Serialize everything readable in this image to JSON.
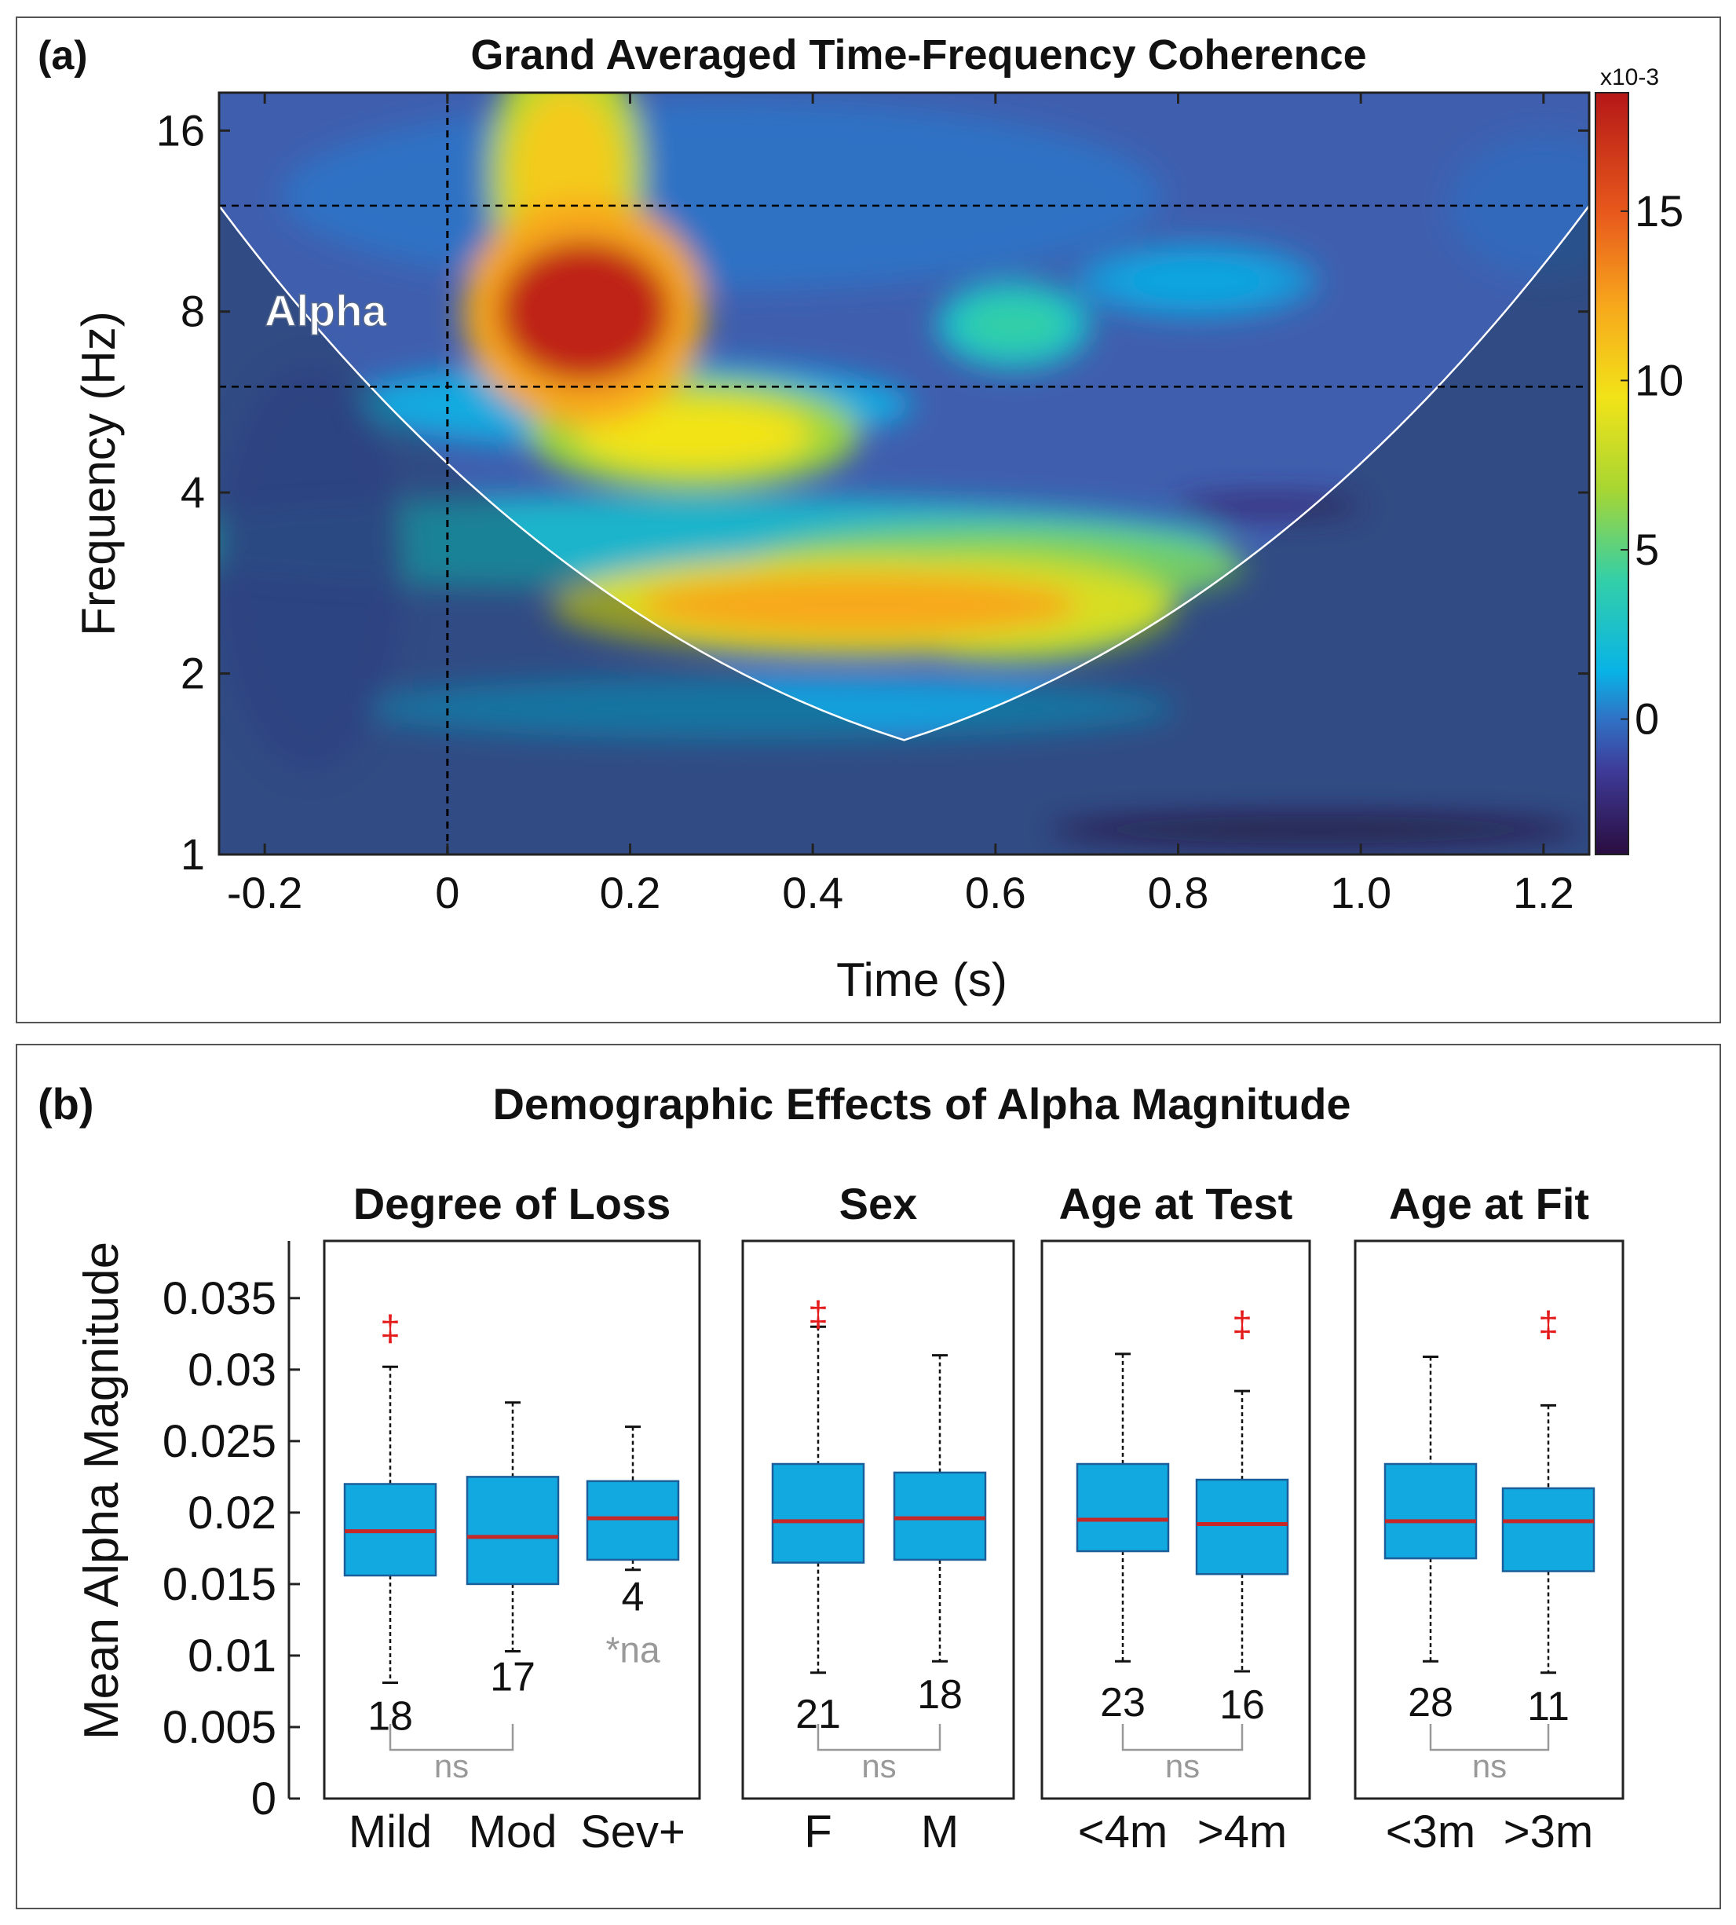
{
  "panel_a": {
    "label": "(a)",
    "title": "Grand Averaged Time-Frequency Coherence",
    "annotation": "Alpha",
    "colorbar": {
      "exponent_label": "x10-3",
      "ticks": [
        "15",
        "10",
        "5",
        "0"
      ],
      "range": [
        -4,
        18.5
      ],
      "tick_values": [
        15,
        10,
        5,
        0
      ],
      "colors": [
        "#2a0d3f",
        "#3e3b98",
        "#2f74c6",
        "#08b3e6",
        "#33cfa8",
        "#a8d632",
        "#f2e318",
        "#f7a81c",
        "#e85a1c",
        "#b51717"
      ]
    }
  },
  "panel_b": {
    "label": "(b)",
    "title": "Demographic Effects of Alpha Magnitude",
    "sig_marker": "‡",
    "ns_label": "ns",
    "na_note": "*na",
    "colors": {
      "box": "#12a9e0",
      "box_edge": "#1a5e9a",
      "median": "#c62828",
      "marker": "#e41b1b",
      "ns": "#999999"
    }
  },
  "chart_data": [
    {
      "type": "heatmap",
      "title": "Grand Averaged Time-Frequency Coherence",
      "xlabel": "Time (s)",
      "ylabel": "Frequency (Hz)",
      "x_ticks": [
        "-0.2",
        "0",
        "0.2",
        "0.4",
        "0.6",
        "0.8",
        "1.0",
        "1.2"
      ],
      "x_tick_values": [
        -0.2,
        0,
        0.2,
        0.4,
        0.6,
        0.8,
        1.0,
        1.2
      ],
      "y_ticks": [
        "16",
        "8",
        "4",
        "2",
        "1"
      ],
      "y_tick_values": [
        16,
        8,
        4,
        2,
        1
      ],
      "y_scale": "log2",
      "xlim": [
        -0.25,
        1.25
      ],
      "ylim": [
        1,
        18.5
      ],
      "alpha_band_hz": [
        6,
        12
      ],
      "stimulus_onset_s": 0,
      "cone_of_influence": {
        "apex_time": 0.5,
        "apex_freq": 1.55,
        "edge_freq": 12
      },
      "color_label": "coherence (x10-3)",
      "hotspots": [
        {
          "time": 0.15,
          "freq": 8.0,
          "value": 18.0
        },
        {
          "time": 0.13,
          "freq": 13.5,
          "value": 12.0
        },
        {
          "time": 0.27,
          "freq": 5.0,
          "value": 11.0
        },
        {
          "time": 0.45,
          "freq": 2.6,
          "value": 13.5
        },
        {
          "time": 0.62,
          "freq": 2.6,
          "value": 11.0
        },
        {
          "time": 0.62,
          "freq": 7.6,
          "value": 6.0
        },
        {
          "time": 0.82,
          "freq": 9.0,
          "value": 3.0
        }
      ]
    },
    {
      "type": "box",
      "ylabel": "Mean Alpha Magnitude",
      "ylim": [
        0,
        0.039
      ],
      "y_ticks": [
        "0.035",
        "0.03",
        "0.025",
        "0.02",
        "0.015",
        "0.01",
        "0.005",
        "0"
      ],
      "y_tick_values": [
        0.035,
        0.03,
        0.025,
        0.02,
        0.015,
        0.01,
        0.005,
        0
      ],
      "groups": [
        {
          "title": "Degree of Loss",
          "boxes": [
            {
              "label": "Mild",
              "n": "18",
              "q1": 0.0156,
              "median": 0.0187,
              "q3": 0.022,
              "whisker_low": 0.0081,
              "whisker_high": 0.0302,
              "outlier": 0.033
            },
            {
              "label": "Mod",
              "n": "17",
              "q1": 0.015,
              "median": 0.0183,
              "q3": 0.0225,
              "whisker_low": 0.0103,
              "whisker_high": 0.0277
            },
            {
              "label": "Sev+",
              "n": "4",
              "q1": 0.0167,
              "median": 0.0196,
              "q3": 0.0222,
              "whisker_low": 0.016,
              "whisker_high": 0.026,
              "note": "*na"
            }
          ]
        },
        {
          "title": "Sex",
          "boxes": [
            {
              "label": "F",
              "n": "21",
              "q1": 0.0165,
              "median": 0.0194,
              "q3": 0.0234,
              "whisker_low": 0.0088,
              "whisker_high": 0.033,
              "outlier": 0.034
            },
            {
              "label": "M",
              "n": "18",
              "q1": 0.0167,
              "median": 0.0196,
              "q3": 0.0228,
              "whisker_low": 0.0096,
              "whisker_high": 0.031
            }
          ]
        },
        {
          "title": "Age at Test",
          "boxes": [
            {
              "label": "<4m",
              "n": "23",
              "q1": 0.0173,
              "median": 0.0195,
              "q3": 0.0234,
              "whisker_low": 0.0096,
              "whisker_high": 0.0311
            },
            {
              "label": ">4m",
              "n": "16",
              "q1": 0.0157,
              "median": 0.0192,
              "q3": 0.0223,
              "whisker_low": 0.0089,
              "whisker_high": 0.0285,
              "outlier": 0.0333
            }
          ]
        },
        {
          "title": "Age at Fit",
          "boxes": [
            {
              "label": "<3m",
              "n": "28",
              "q1": 0.0168,
              "median": 0.0194,
              "q3": 0.0234,
              "whisker_low": 0.0096,
              "whisker_high": 0.0309
            },
            {
              "label": ">3m",
              "n": "11",
              "q1": 0.0159,
              "median": 0.0194,
              "q3": 0.0217,
              "whisker_low": 0.0088,
              "whisker_high": 0.0275,
              "outlier": 0.0333
            }
          ]
        }
      ]
    }
  ]
}
